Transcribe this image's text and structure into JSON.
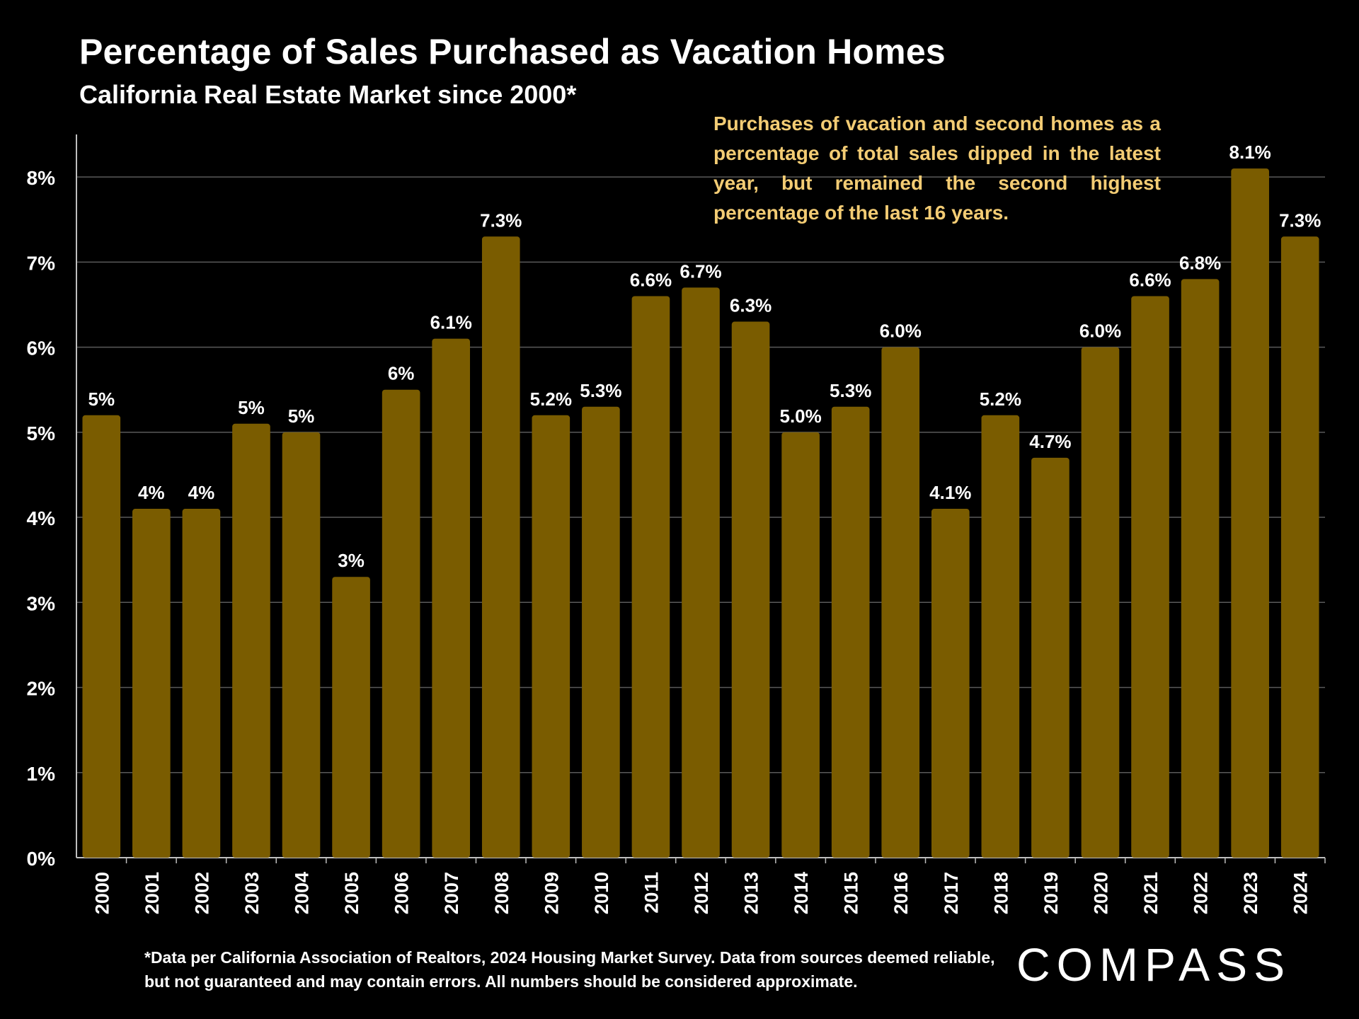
{
  "colors": {
    "background": "#000000",
    "bar": "#7a5c00",
    "annotation": "#f3cc74",
    "text": "#ffffff",
    "grid": "#5a5a5a",
    "axis": "#bfbfbf"
  },
  "header": {
    "title": "Percentage of Sales Purchased as Vacation Homes",
    "subtitle": "California Real Estate Market since 2000*"
  },
  "annotation": {
    "text": "Purchases of vacation and second homes as a percentage of total sales dipped in the latest year, but remained the second highest percentage of the last 16 years."
  },
  "footer": {
    "note": "*Data per California Association of Realtors, 2024 Housing Market Survey. Data from sources deemed reliable, but not guaranteed and may contain errors. All numbers should be considered approximate.",
    "logo_text": "COMPASS"
  },
  "chart_data": {
    "type": "bar",
    "title": "Percentage of Sales Purchased as Vacation Homes",
    "subtitle": "California Real Estate Market since 2000*",
    "xlabel": "",
    "ylabel": "",
    "categories": [
      "2000",
      "2001",
      "2002",
      "2003",
      "2004",
      "2005",
      "2006",
      "2007",
      "2008",
      "2009",
      "2010",
      "2011",
      "2012",
      "2013",
      "2014",
      "2015",
      "2016",
      "2017",
      "2018",
      "2019",
      "2020",
      "2021",
      "2022",
      "2023",
      "2024"
    ],
    "values": [
      5.2,
      4.1,
      4.1,
      5.1,
      5.0,
      3.3,
      5.5,
      6.1,
      7.3,
      5.2,
      5.3,
      6.6,
      6.7,
      6.3,
      5.0,
      5.3,
      6.0,
      4.1,
      5.2,
      4.7,
      6.0,
      6.6,
      6.8,
      8.1,
      7.3
    ],
    "data_labels": [
      "5%",
      "4%",
      "4%",
      "5%",
      "5%",
      "3%",
      "6%",
      "6.1%",
      "7.3%",
      "5.2%",
      "5.3%",
      "6.6%",
      "6.7%",
      "6.3%",
      "5.0%",
      "5.3%",
      "6.0%",
      "4.1%",
      "5.2%",
      "4.7%",
      "6.0%",
      "6.6%",
      "6.8%",
      "8.1%",
      "7.3%"
    ],
    "yticks": [
      0,
      1,
      2,
      3,
      4,
      5,
      6,
      7,
      8
    ],
    "ytick_labels": [
      "0%",
      "1%",
      "2%",
      "3%",
      "4%",
      "5%",
      "6%",
      "7%",
      "8%"
    ],
    "ylim": [
      0,
      8.5
    ],
    "grid": true,
    "legend": "none"
  }
}
